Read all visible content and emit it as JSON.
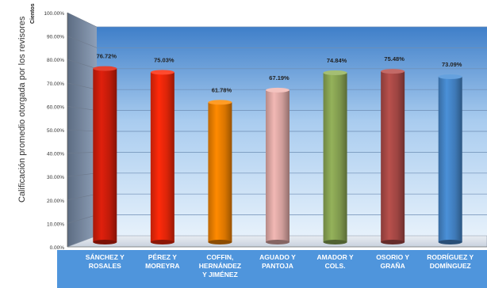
{
  "chart_data": {
    "type": "bar",
    "title": "",
    "unit_label": "Cientos",
    "ylabel": "Calificación promedio otorgada por los revisores",
    "xlabel": "",
    "ylim": [
      0,
      100
    ],
    "yticks": [
      "0.00%",
      "10.00%",
      "20.00%",
      "30.00%",
      "40.00%",
      "50.00%",
      "60.00%",
      "70.00%",
      "80.00%",
      "90.00%",
      "100.00%"
    ],
    "categories": [
      [
        "SÁNCHEZ Y",
        "ROSALES"
      ],
      [
        "PÉREZ Y",
        "MOREYRA"
      ],
      [
        "COFFIN,",
        "HERNÁNDEZ",
        "Y JIMÉNEZ"
      ],
      [
        "AGUADO Y",
        "PANTOJA"
      ],
      [
        "AMADOR Y",
        "COLS."
      ],
      [
        "OSORIO Y",
        "GRAÑA"
      ],
      [
        "RODRÍGUEZ Y",
        "DOMÍNGUEZ"
      ]
    ],
    "values": [
      76.72,
      75.03,
      61.78,
      67.19,
      74.84,
      75.48,
      73.09
    ],
    "value_labels": [
      "76.72%",
      "75.03%",
      "61.78%",
      "67.19%",
      "74.84%",
      "75.48%",
      "73.09%"
    ],
    "bar_colors": [
      "#e0200c",
      "#ff2a0a",
      "#ff8a00",
      "#f2b8b4",
      "#94b25a",
      "#b8504c",
      "#4a90d8"
    ],
    "grid": true,
    "legend": "none"
  }
}
